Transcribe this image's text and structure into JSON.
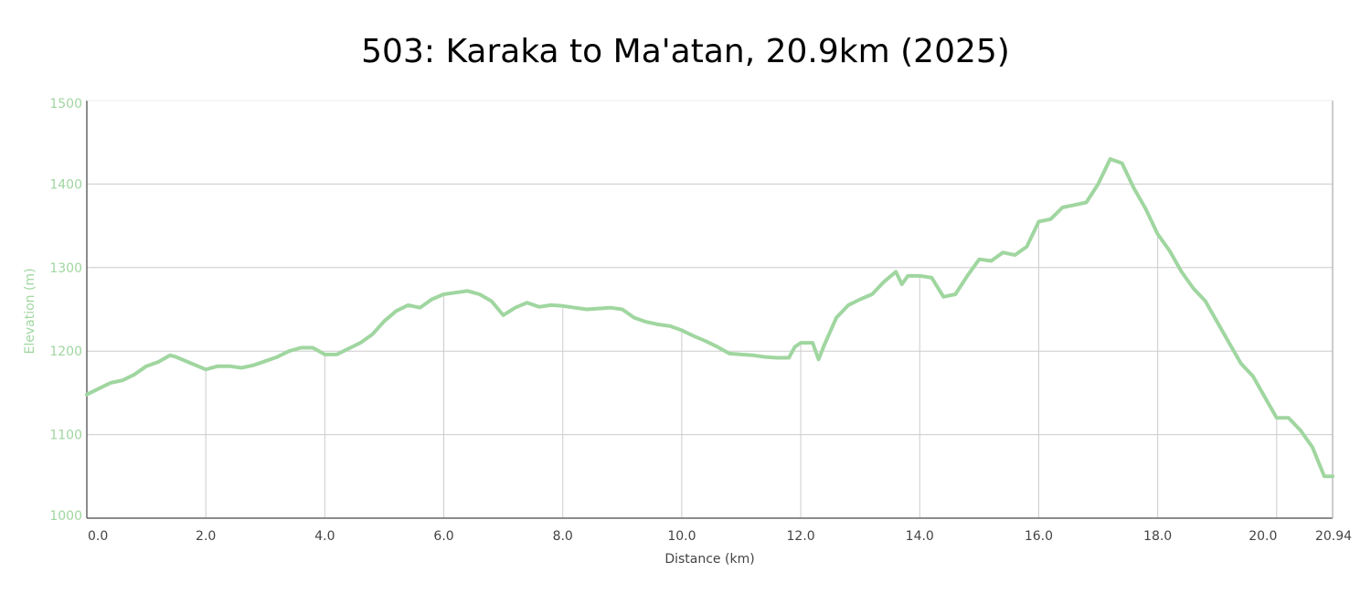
{
  "chart_data": {
    "type": "line",
    "title": "503: Karaka to Ma'atan, 20.9km (2025)",
    "xlabel": "Distance (km)",
    "ylabel": "Elevation (m)",
    "xlim": [
      0,
      20.94
    ],
    "ylim": [
      1000,
      1500
    ],
    "x_ticks": [
      {
        "value": 0.0,
        "label": "0.0"
      },
      {
        "value": 2.0,
        "label": "2.0"
      },
      {
        "value": 4.0,
        "label": "4.0"
      },
      {
        "value": 6.0,
        "label": "6.0"
      },
      {
        "value": 8.0,
        "label": "8.0"
      },
      {
        "value": 10.0,
        "label": "10.0"
      },
      {
        "value": 12.0,
        "label": "12.0"
      },
      {
        "value": 14.0,
        "label": "14.0"
      },
      {
        "value": 16.0,
        "label": "16.0"
      },
      {
        "value": 18.0,
        "label": "18.0"
      },
      {
        "value": 20.0,
        "label": "20.0"
      },
      {
        "value": 20.94,
        "label": "20.94"
      }
    ],
    "y_ticks": [
      {
        "value": 1000,
        "label": "1000"
      },
      {
        "value": 1100,
        "label": "1100"
      },
      {
        "value": 1200,
        "label": "1200"
      },
      {
        "value": 1300,
        "label": "1300"
      },
      {
        "value": 1400,
        "label": "1400"
      },
      {
        "value": 1500,
        "label": "1500"
      }
    ],
    "grid": true,
    "line_color": "#a0d6a0",
    "axis_label_color": "#a0d6a0",
    "grid_color": "#cccccc",
    "series": [
      {
        "x": [
          0.0,
          0.2,
          0.4,
          0.6,
          0.8,
          1.0,
          1.2,
          1.4,
          1.5,
          1.7,
          2.0,
          2.2,
          2.4,
          2.6,
          2.8,
          3.0,
          3.2,
          3.4,
          3.6,
          3.8,
          4.0,
          4.2,
          4.4,
          4.6,
          4.8,
          5.0,
          5.2,
          5.4,
          5.6,
          5.8,
          6.0,
          6.2,
          6.4,
          6.6,
          6.8,
          7.0,
          7.2,
          7.4,
          7.6,
          7.8,
          8.0,
          8.2,
          8.4,
          8.6,
          8.8,
          9.0,
          9.2,
          9.4,
          9.6,
          9.8,
          10.0,
          10.2,
          10.4,
          10.6,
          10.8,
          11.0,
          11.2,
          11.4,
          11.6,
          11.8,
          11.9,
          12.0,
          12.2,
          12.3,
          12.4,
          12.6,
          12.8,
          13.0,
          13.2,
          13.4,
          13.6,
          13.7,
          13.8,
          14.0,
          14.2,
          14.4,
          14.6,
          14.8,
          15.0,
          15.2,
          15.4,
          15.6,
          15.8,
          16.0,
          16.2,
          16.4,
          16.6,
          16.8,
          17.0,
          17.2,
          17.4,
          17.6,
          17.8,
          18.0,
          18.2,
          18.4,
          18.6,
          18.8,
          19.0,
          19.2,
          19.4,
          19.6,
          19.8,
          20.0,
          20.2,
          20.4,
          20.6,
          20.8,
          20.94
        ],
        "y": [
          1148,
          1155,
          1162,
          1165,
          1172,
          1182,
          1187,
          1195,
          1193,
          1187,
          1178,
          1182,
          1182,
          1180,
          1183,
          1188,
          1193,
          1200,
          1204,
          1204,
          1196,
          1196,
          1203,
          1210,
          1220,
          1236,
          1248,
          1255,
          1252,
          1262,
          1268,
          1270,
          1272,
          1268,
          1260,
          1243,
          1252,
          1258,
          1253,
          1255,
          1254,
          1252,
          1250,
          1251,
          1252,
          1250,
          1240,
          1235,
          1232,
          1230,
          1225,
          1218,
          1212,
          1205,
          1197,
          1196,
          1195,
          1193,
          1192,
          1192,
          1205,
          1210,
          1210,
          1190,
          1208,
          1240,
          1255,
          1262,
          1268,
          1283,
          1295,
          1280,
          1290,
          1290,
          1288,
          1265,
          1268,
          1290,
          1310,
          1308,
          1318,
          1315,
          1325,
          1355,
          1358,
          1372,
          1375,
          1378,
          1400,
          1430,
          1425,
          1395,
          1370,
          1340,
          1320,
          1295,
          1275,
          1260,
          1235,
          1210,
          1185,
          1170,
          1145,
          1120,
          1120,
          1105,
          1085,
          1050,
          1050
        ]
      }
    ]
  }
}
